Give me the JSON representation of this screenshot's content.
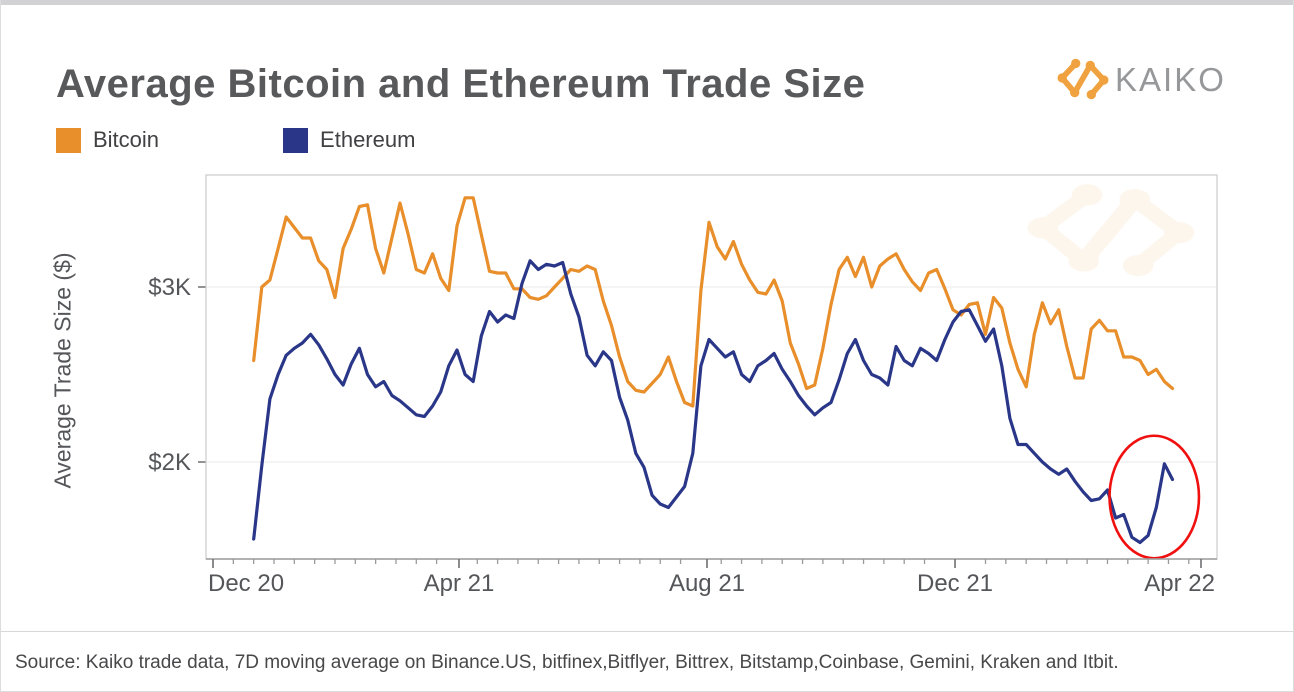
{
  "page": {
    "title": "Average Bitcoin and Ethereum Trade Size",
    "logo_text": "KAIKO",
    "source_note": "Source: Kaiko trade data, 7D moving average on Binance.US, bitfinex,Bitflyer, Bittrex, Bitstamp,Coinbase, Gemini, Kraken and Itbit."
  },
  "legend": [
    {
      "label": "Bitcoin",
      "color": "#e88e2a"
    },
    {
      "label": "Ethereum",
      "color": "#2a3789"
    }
  ],
  "brand": {
    "mark_color": "#f0a240",
    "text_color": "#96989a",
    "watermark_opacity": 0.09
  },
  "chart_data": {
    "type": "line",
    "title": "Average Bitcoin and Ethereum Trade Size",
    "xlabel": "",
    "ylabel": "Average Trade Size ($)",
    "grid": "horizontal-only",
    "legend_position": "top-left",
    "day0_date": "2020-12-01",
    "x_span_days": [
      -3,
      494
    ],
    "ylim_usd": [
      1445,
      3640
    ],
    "y_ticks": [
      {
        "label": "$2K",
        "value": 2000
      },
      {
        "label": "$3K",
        "value": 3000
      }
    ],
    "x_ticks": [
      {
        "label": "Dec 20",
        "day": 0
      },
      {
        "label": "Apr 21",
        "day": 121
      },
      {
        "label": "Aug 21",
        "day": 243
      },
      {
        "label": "Dec 21",
        "day": 365
      },
      {
        "label": "Apr 22",
        "day": 486
      }
    ],
    "x_minor_tick_every_days": 10,
    "series": [
      {
        "name": "Bitcoin",
        "color": "#e88e2a",
        "start_day": 20,
        "step_days": 4,
        "values_usd": [
          2580,
          3000,
          3040,
          3220,
          3400,
          3340,
          3280,
          3280,
          3150,
          3100,
          2940,
          3220,
          3330,
          3460,
          3470,
          3220,
          3080,
          3280,
          3480,
          3300,
          3100,
          3080,
          3190,
          3050,
          2980,
          3350,
          3510,
          3510,
          3300,
          3090,
          3080,
          3080,
          2990,
          2990,
          2940,
          2930,
          2950,
          3000,
          3050,
          3100,
          3090,
          3120,
          3100,
          2920,
          2780,
          2600,
          2460,
          2410,
          2400,
          2450,
          2500,
          2600,
          2460,
          2340,
          2320,
          2980,
          3370,
          3230,
          3160,
          3260,
          3130,
          3040,
          2970,
          2960,
          3040,
          2920,
          2680,
          2560,
          2420,
          2440,
          2650,
          2900,
          3100,
          3170,
          3060,
          3170,
          3000,
          3120,
          3160,
          3190,
          3100,
          3030,
          2980,
          3080,
          3100,
          2990,
          2870,
          2840,
          2900,
          2910,
          2730,
          2940,
          2880,
          2680,
          2530,
          2430,
          2730,
          2910,
          2790,
          2870,
          2660,
          2480,
          2480,
          2760,
          2810,
          2750,
          2750,
          2600,
          2600,
          2580,
          2500,
          2530,
          2460,
          2420
        ]
      },
      {
        "name": "Ethereum",
        "color": "#2a3789",
        "start_day": 20,
        "step_days": 4,
        "values_usd": [
          1560,
          1980,
          2360,
          2500,
          2610,
          2650,
          2680,
          2730,
          2670,
          2590,
          2500,
          2440,
          2560,
          2650,
          2500,
          2430,
          2460,
          2380,
          2350,
          2310,
          2270,
          2260,
          2320,
          2400,
          2550,
          2640,
          2500,
          2460,
          2720,
          2860,
          2800,
          2840,
          2820,
          3020,
          3150,
          3100,
          3130,
          3120,
          3140,
          2960,
          2830,
          2610,
          2550,
          2630,
          2580,
          2370,
          2240,
          2050,
          1970,
          1810,
          1760,
          1740,
          1800,
          1860,
          2050,
          2550,
          2700,
          2650,
          2600,
          2630,
          2500,
          2460,
          2550,
          2580,
          2620,
          2530,
          2460,
          2380,
          2320,
          2270,
          2310,
          2340,
          2470,
          2620,
          2700,
          2580,
          2500,
          2480,
          2440,
          2660,
          2580,
          2550,
          2650,
          2620,
          2580,
          2700,
          2800,
          2860,
          2870,
          2780,
          2690,
          2760,
          2550,
          2250,
          2100,
          2100,
          2050,
          2000,
          1960,
          1930,
          1960,
          1890,
          1830,
          1780,
          1790,
          1840,
          1680,
          1700,
          1570,
          1540,
          1580,
          1740,
          1990,
          1900
        ]
      }
    ],
    "annotation": {
      "shape": "ellipse",
      "color": "#f01010",
      "center_day": 463,
      "center_usd": 1800,
      "rx_days": 22,
      "ry_usd": 350,
      "meaning": "highlights Ethereum trough and rebound at end of series"
    }
  }
}
